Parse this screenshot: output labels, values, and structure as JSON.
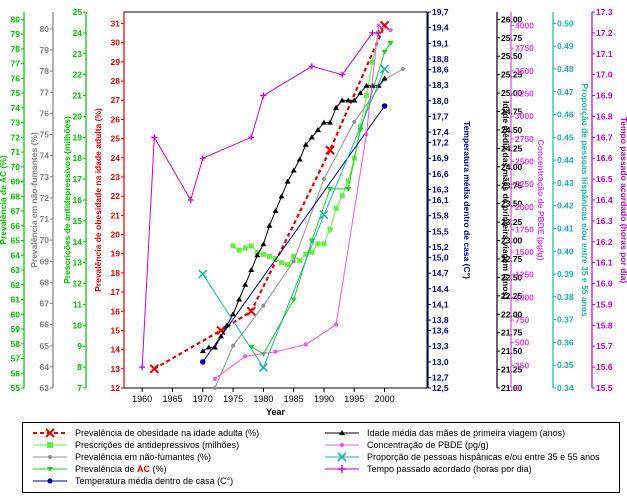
{
  "chart_data": {
    "type": "line",
    "x": {
      "label": "Year",
      "range": [
        1957,
        2007
      ],
      "ticks": [
        1960,
        1965,
        1970,
        1975,
        1980,
        1985,
        1990,
        1995,
        2000
      ]
    },
    "axes": [
      {
        "key": "ac",
        "label": "Prevalência de AC (%)",
        "color": "#00c000",
        "range": [
          55,
          80.5
        ],
        "ticks": [
          "55",
          "56",
          "57",
          "58",
          "59",
          "60",
          "61",
          "62",
          "63",
          "64",
          "65",
          "66",
          "67",
          "68",
          "69",
          "70",
          "71",
          "72",
          "73",
          "74",
          "75",
          "76",
          "77",
          "78",
          "79",
          "80"
        ]
      },
      {
        "key": "nonsmokers",
        "label": "Prevalência em não-fumantes (%)",
        "color": "#808080",
        "range": [
          63,
          80.8
        ],
        "ticks": [
          "63",
          "64",
          "65",
          "66",
          "67",
          "68",
          "69",
          "70",
          "71",
          "72",
          "73",
          "74",
          "75",
          "76",
          "77",
          "78",
          "79",
          "80"
        ]
      },
      {
        "key": "antidep",
        "label": "Prescrições de antidepressivos (milhões)",
        "color": "#00c000",
        "range": [
          7,
          25
        ],
        "ticks": [
          "7",
          "8",
          "9",
          "10",
          "11",
          "12",
          "13",
          "14",
          "15",
          "16",
          "17",
          "18",
          "19",
          "20",
          "21",
          "22",
          "23",
          "24",
          "25"
        ]
      },
      {
        "key": "obesity",
        "label": "Prevalência de obesidade na idade adulta (%)",
        "color": "#e00000",
        "range": [
          12,
          31.6
        ],
        "ticks": [
          "12",
          "13",
          "14",
          "15",
          "16",
          "17",
          "18",
          "19",
          "20",
          "21",
          "22",
          "23",
          "24",
          "25",
          "26",
          "27",
          "28",
          "29",
          "30",
          "31"
        ]
      },
      {
        "key": "temp",
        "label": "Temperatura média dentro de casa (C°)",
        "color": "#000080",
        "range": [
          12.5,
          19.7
        ],
        "ticks": [
          "12,5",
          "12,7",
          "13,0",
          "13,3",
          "13,6",
          "13,8",
          "14,1",
          "14,4",
          "14,7",
          "15,0",
          "15,2",
          "15,5",
          "15,8",
          "16,1",
          "16,3",
          "16,6",
          "16,9",
          "17,2",
          "17,4",
          "17,7",
          "18,0",
          "18,3",
          "18,6",
          "18,8",
          "19,1",
          "19,4",
          "19,7"
        ]
      },
      {
        "key": "age",
        "label": "Idade média das mães de primeira viagem (anos)",
        "color": "#000000",
        "range": [
          21.0,
          26.1
        ],
        "ticks": [
          "21.00",
          "21.25",
          "21.50",
          "21.75",
          "22.00",
          "22.25",
          "22.50",
          "22.75",
          "23.00",
          "23.25",
          "23.50",
          "23.75",
          "24.00",
          "24.25",
          "24.50",
          "24.75",
          "25.00",
          "25.25",
          "25.50",
          "25.75",
          "26.00"
        ]
      },
      {
        "key": "pbde",
        "label": "Concentração de PBDE (pg/g)",
        "color": "#e040e0",
        "range": [
          0,
          4150
        ],
        "ticks": [
          "0",
          "250",
          "500",
          "750",
          "1000",
          "1250",
          "1500",
          "1750",
          "2000",
          "2250",
          "2500",
          "2750",
          "3000",
          "3250",
          "3500",
          "3750",
          "4000"
        ]
      },
      {
        "key": "hisp",
        "label": "Proporção de pessoas hispânicas e/ou entre 35 e 55 anos",
        "color": "#20b0b0",
        "range": [
          0.34,
          0.505
        ],
        "ticks": [
          "0.34",
          "0.35",
          "0.36",
          "0.37",
          "0.38",
          "0.39",
          "0.40",
          "0.41",
          "0.42",
          "0.43",
          "0.44",
          "0.45",
          "0.46",
          "0.47",
          "0.48",
          "0.49",
          "0.50"
        ]
      },
      {
        "key": "sleep",
        "label": "Tempo passado acordado (horas por dia)",
        "color": "#c000c0",
        "range": [
          15.5,
          17.3
        ],
        "ticks": [
          "15.5",
          "15.6",
          "15.7",
          "15.8",
          "15.9",
          "16.0",
          "16.1",
          "16.2",
          "16.3",
          "16.4",
          "16.5",
          "16.6",
          "16.7",
          "16.8",
          "16.9",
          "17.0",
          "17.1",
          "17.2",
          "17.3"
        ]
      }
    ],
    "series": [
      {
        "name": "Prevalência de obesidade na idade adulta (%)",
        "axis": "obesity",
        "color": "#e00000",
        "marker": "x",
        "dash": true,
        "width": 2.2,
        "points": [
          [
            1962,
            13.0
          ],
          [
            1973,
            15.0
          ],
          [
            1978,
            16.0
          ],
          [
            1991,
            24.4
          ],
          [
            2000,
            30.9
          ]
        ]
      },
      {
        "name": "Prescrições de antidepressivos (milhões)",
        "axis": "antidep",
        "color": "#66ee44",
        "marker": "square",
        "points": [
          [
            1975,
            13.8
          ],
          [
            1976,
            13.6
          ],
          [
            1977,
            13.7
          ],
          [
            1978,
            13.8
          ],
          [
            1979,
            13.5
          ],
          [
            1980,
            13.4
          ],
          [
            1981,
            13.3
          ],
          [
            1982,
            13.2
          ],
          [
            1983,
            13.0
          ],
          [
            1984,
            12.9
          ],
          [
            1985,
            13.3
          ],
          [
            1986,
            13.1
          ],
          [
            1987,
            13.4
          ],
          [
            1988,
            13.5
          ],
          [
            1989,
            13.9
          ],
          [
            1990,
            13.9
          ],
          [
            1991,
            14.6
          ],
          [
            1992,
            15.6
          ],
          [
            1993,
            16.2
          ],
          [
            1994,
            16.9
          ],
          [
            1995,
            18.0
          ],
          [
            1996,
            19.5
          ],
          [
            1997,
            21.0
          ],
          [
            1998,
            22.6
          ],
          [
            1999,
            24.0
          ]
        ]
      },
      {
        "name": "Prevalência em não-fumantes (%)",
        "axis": "nonsmokers",
        "color": "#909090",
        "marker": "dot",
        "points": [
          [
            1972,
            63.0
          ],
          [
            1975,
            65.0
          ],
          [
            1980,
            66.9
          ],
          [
            1985,
            69.0
          ],
          [
            1990,
            72.9
          ],
          [
            1995,
            75.6
          ],
          [
            2000,
            77.6
          ],
          [
            2003,
            78.1
          ]
        ]
      },
      {
        "name": "Prevalência de AC (%)",
        "axis": "ac",
        "color": "#22cc22",
        "marker": "tri_down",
        "points": [
          [
            1978,
            57.8
          ],
          [
            1980,
            57.3
          ],
          [
            1985,
            61.0
          ],
          [
            1988,
            65.0
          ],
          [
            1991,
            68.5
          ],
          [
            1994,
            68.5
          ],
          [
            1996,
            72.5
          ],
          [
            2000,
            77.8
          ],
          [
            2001,
            78.4
          ]
        ]
      },
      {
        "name": "Temperatura média dentro de casa (C°)",
        "axis": "temp",
        "color": "#0000a0",
        "marker": "dot",
        "points": [
          [
            1970,
            13.0
          ],
          [
            2000,
            17.9
          ]
        ]
      },
      {
        "name": "Idade média das mães de primeira viagem (anos)",
        "axis": "age",
        "color": "#000000",
        "marker": "tri_up",
        "points": [
          [
            1970,
            21.5
          ],
          [
            1971,
            21.55
          ],
          [
            1972,
            21.55
          ],
          [
            1973,
            21.7
          ],
          [
            1974,
            21.85
          ],
          [
            1975,
            22.0
          ],
          [
            1976,
            22.2
          ],
          [
            1977,
            22.4
          ],
          [
            1978,
            22.6
          ],
          [
            1979,
            22.8
          ],
          [
            1980,
            22.95
          ],
          [
            1981,
            23.2
          ],
          [
            1982,
            23.4
          ],
          [
            1983,
            23.6
          ],
          [
            1984,
            23.8
          ],
          [
            1985,
            23.95
          ],
          [
            1986,
            24.1
          ],
          [
            1987,
            24.3
          ],
          [
            1988,
            24.4
          ],
          [
            1989,
            24.5
          ],
          [
            1990,
            24.6
          ],
          [
            1991,
            24.6
          ],
          [
            1992,
            24.8
          ],
          [
            1993,
            24.9
          ],
          [
            1994,
            24.9
          ],
          [
            1995,
            24.9
          ],
          [
            1996,
            25.0
          ],
          [
            1997,
            25.1
          ],
          [
            1998,
            25.1
          ],
          [
            1999,
            25.1
          ],
          [
            2000,
            25.2
          ]
        ]
      },
      {
        "name": "Concentração de PBDE (pg/g)",
        "axis": "pbde",
        "color": "#ee55ee",
        "marker": "dot",
        "points": [
          [
            1972,
            100
          ],
          [
            1977,
            350
          ],
          [
            1982,
            400
          ],
          [
            1987,
            480
          ],
          [
            1992,
            700
          ],
          [
            1997,
            2800
          ],
          [
            1999,
            4000
          ],
          [
            2001,
            3950
          ]
        ]
      },
      {
        "name": "Proporção de pessoas hispânicas e/ou entre 35 e 55 anos",
        "axis": "hisp",
        "color": "#20b0b0",
        "marker": "x",
        "points": [
          [
            1970,
            0.39
          ],
          [
            1980,
            0.349
          ],
          [
            1990,
            0.416
          ],
          [
            2000,
            0.48
          ]
        ]
      },
      {
        "name": "Tempo passado acordado (horas por dia)",
        "axis": "sleep",
        "color": "#cc00cc",
        "marker": "plus",
        "points": [
          [
            1960,
            15.6
          ],
          [
            1962,
            16.7
          ],
          [
            1968,
            16.4
          ],
          [
            1970,
            16.6
          ],
          [
            1978,
            16.7
          ],
          [
            1980,
            16.9
          ],
          [
            1988,
            17.04
          ],
          [
            1993,
            17.0
          ],
          [
            1998,
            17.2
          ],
          [
            1999,
            17.2
          ]
        ]
      }
    ]
  },
  "legend": [
    {
      "text": "Prevalência de obesidade na idade adulta (%)"
    },
    {
      "text": "Idade média das mães de primeira viagem (anos)"
    },
    {
      "text": "Prescrições de antidepressivos (milhões)"
    },
    {
      "text": "Concentração de PBDE  (pg/g)"
    },
    {
      "text": "Prevalência em não-fumantes (%)"
    },
    {
      "text": "Proporção de pessoas hispânicas e/ou entre 35 e 55 anos"
    },
    {
      "text_before": "Prevalência de ",
      "text_red": "AC",
      "text_after": " (%)"
    },
    {
      "text": "Tempo passado acordado (horas por dia)"
    },
    {
      "text": "Temperatura média dentro de casa (C°)"
    }
  ]
}
